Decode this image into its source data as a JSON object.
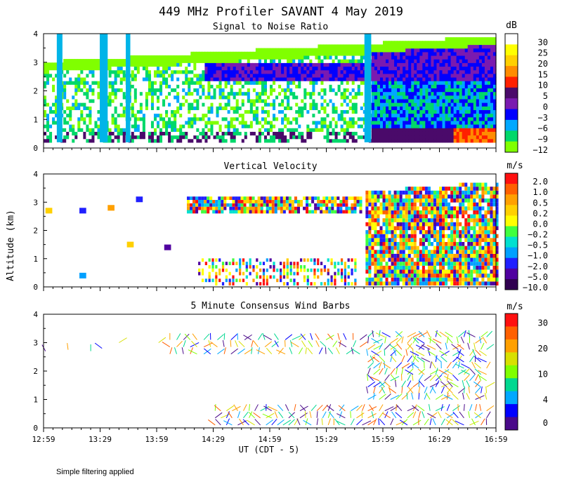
{
  "title": "449 MHz Profiler SAVANT  4 May 2019",
  "y_axis_label": "Altitude (km)",
  "footnote": "Simple filtering applied",
  "x_axis": {
    "label": "UT  (CDT - 5)",
    "ticks": [
      "12:59",
      "13:29",
      "13:59",
      "14:29",
      "14:59",
      "15:29",
      "15:59",
      "16:29",
      "16:59"
    ],
    "range_hours": [
      12.983,
      16.983
    ]
  },
  "chart_data": [
    {
      "type": "heatmap",
      "title": "Signal to Noise Ratio",
      "unit": "dB",
      "ylim": [
        0,
        4
      ],
      "yticks": [
        "0",
        "1",
        "2",
        "3",
        "4"
      ],
      "colorbar_labels": [
        "30",
        "25",
        "20",
        "15",
        "10",
        "5",
        "0",
        "−3",
        "−6",
        "−9",
        "−12"
      ],
      "colorbar_colors": [
        "#ffffff",
        "#ffff00",
        "#ffd000",
        "#ff8c00",
        "#ff2000",
        "#4a0a6a",
        "#7a1ab0",
        "#0000ff",
        "#00a8ff",
        "#00d86a",
        "#80ff00"
      ]
    },
    {
      "type": "heatmap",
      "title": "Vertical Velocity",
      "unit": "m/s",
      "ylim": [
        0,
        4
      ],
      "yticks": [
        "0",
        "1",
        "2",
        "3",
        "4"
      ],
      "colorbar_labels": [
        "2.0",
        "1.0",
        "0.5",
        "0.2",
        "0.0",
        "−0.2",
        "−0.5",
        "−1.0",
        "−2.0",
        "−5.0",
        "−10.0"
      ],
      "colorbar_colors": [
        "#ff1010",
        "#ff6000",
        "#ffa000",
        "#ffd000",
        "#ffff00",
        "#40ff40",
        "#00e0d0",
        "#00a0ff",
        "#2020ff",
        "#5000a0",
        "#300050"
      ]
    },
    {
      "type": "scatter",
      "title": "5 Minute Consensus Wind Barbs",
      "unit": "m/s",
      "ylim": [
        0,
        4
      ],
      "yticks": [
        "0",
        "1",
        "2",
        "3",
        "4"
      ],
      "colorbar_labels": [
        "30",
        "20",
        "10",
        "4",
        "0"
      ],
      "colorbar_colors": [
        "#ff1010",
        "#ff6000",
        "#ffa000",
        "#d8e000",
        "#80ff00",
        "#00d890",
        "#00a8ff",
        "#0000ff",
        "#4a0a8a"
      ]
    }
  ]
}
